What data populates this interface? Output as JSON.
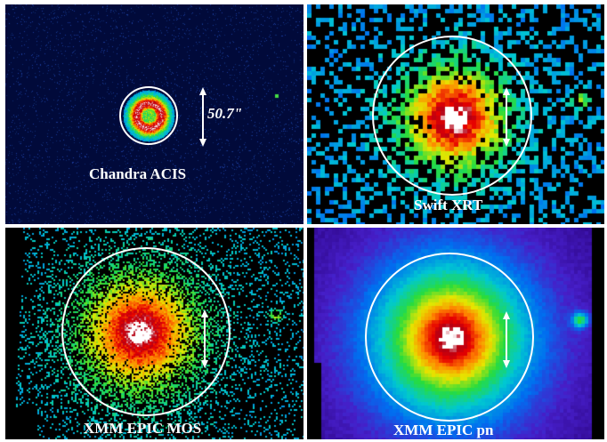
{
  "panels": {
    "chandra": {
      "label": "Chandra ACIS",
      "scale_label": "50.7\""
    },
    "swift": {
      "label": "Swift XRT"
    },
    "mos": {
      "label": "XMM EPIC MOS"
    },
    "pn": {
      "label": "XMM EPIC pn"
    }
  },
  "colors": {
    "circle": "#ffffff",
    "arrow": "#ffffff",
    "label": "#ffffff"
  }
}
